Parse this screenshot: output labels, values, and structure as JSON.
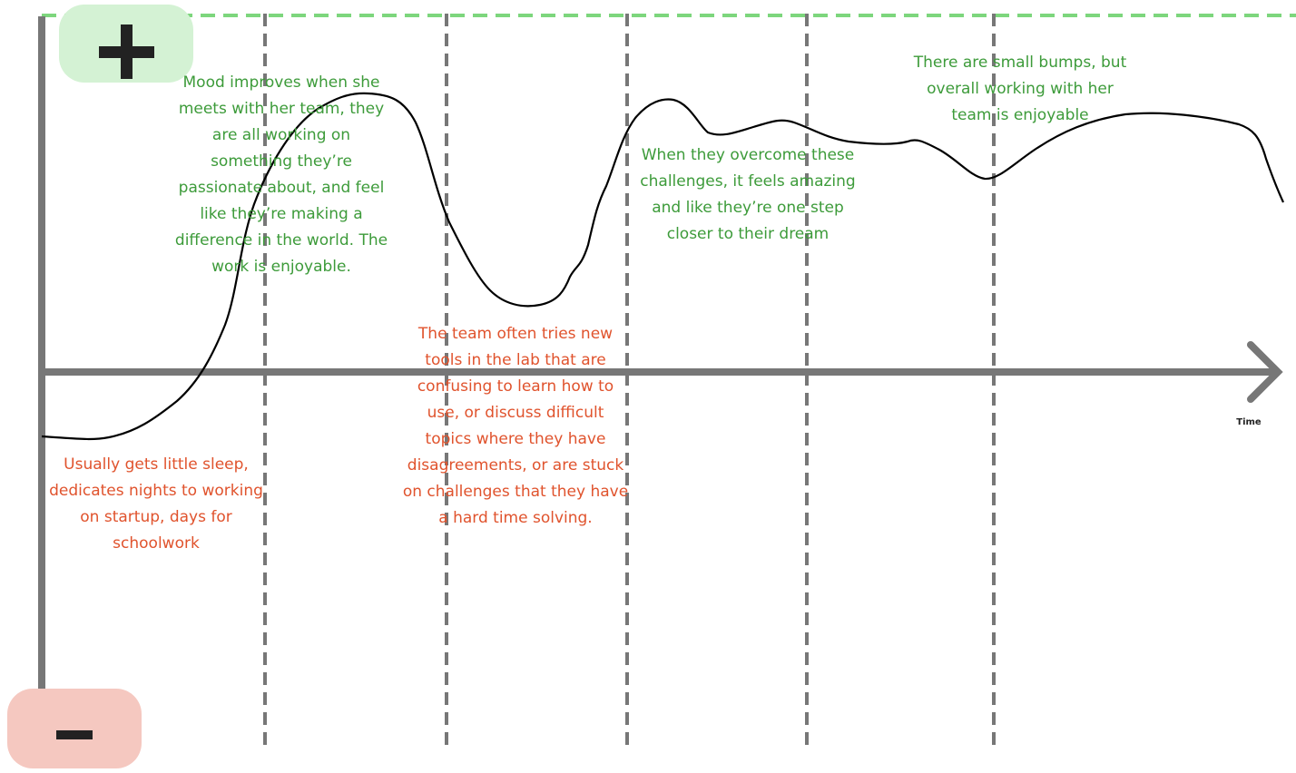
{
  "axis": {
    "x_label": "Time"
  },
  "annotations": [
    {
      "tone": "positive",
      "lines": [
        "Mood improves when she",
        "meets with her team, they",
        "are all working on",
        "something they’re",
        "passionate about, and feel",
        "like they’re making a",
        "difference in the world. The",
        "work is enjoyable."
      ]
    },
    {
      "tone": "positive",
      "lines": [
        "When they overcome these",
        "challenges, it feels amazing",
        "and like they’re one step",
        "closer to their dream"
      ]
    },
    {
      "tone": "positive",
      "lines": [
        "There are small bumps, but",
        "overall working with her",
        "team is enjoyable"
      ]
    },
    {
      "tone": "negative",
      "lines": [
        "Usually gets little sleep,",
        "dedicates nights to working",
        "on startup, days for",
        "schoolwork"
      ]
    },
    {
      "tone": "negative",
      "lines": [
        "The team often tries new",
        "tools in the lab that are",
        "confusing to learn how to",
        "use, or discuss difficult",
        "topics where they have",
        "disagreements, or are stuck",
        "on challenges that they have",
        "a hard time solving."
      ]
    }
  ]
}
